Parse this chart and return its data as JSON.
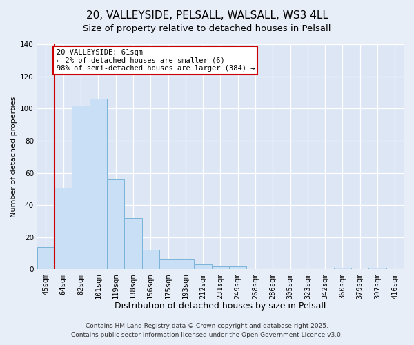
{
  "title": "20, VALLEYSIDE, PELSALL, WALSALL, WS3 4LL",
  "subtitle": "Size of property relative to detached houses in Pelsall",
  "xlabel": "Distribution of detached houses by size in Pelsall",
  "ylabel": "Number of detached properties",
  "categories": [
    "45sqm",
    "64sqm",
    "82sqm",
    "101sqm",
    "119sqm",
    "138sqm",
    "156sqm",
    "175sqm",
    "193sqm",
    "212sqm",
    "231sqm",
    "249sqm",
    "268sqm",
    "286sqm",
    "305sqm",
    "323sqm",
    "342sqm",
    "360sqm",
    "379sqm",
    "397sqm",
    "416sqm"
  ],
  "values": [
    14,
    51,
    102,
    106,
    56,
    32,
    12,
    6,
    6,
    3,
    2,
    2,
    0,
    0,
    0,
    0,
    0,
    1,
    0,
    1,
    0
  ],
  "bar_color": "#c8dff5",
  "bar_edge_color": "#7ab4d8",
  "marker_label": "20 VALLEYSIDE: 61sqm",
  "annotation_line1": "← 2% of detached houses are smaller (6)",
  "annotation_line2": "98% of semi-detached houses are larger (384) →",
  "annotation_box_color": "#ffffff",
  "annotation_box_edge": "#cc0000",
  "marker_line_color": "#cc0000",
  "ylim": [
    0,
    140
  ],
  "yticks": [
    0,
    20,
    40,
    60,
    80,
    100,
    120,
    140
  ],
  "footer1": "Contains HM Land Registry data © Crown copyright and database right 2025.",
  "footer2": "Contains public sector information licensed under the Open Government Licence v3.0.",
  "background_color": "#e8eef8",
  "plot_bg_color": "#dde6f5",
  "title_fontsize": 11,
  "subtitle_fontsize": 9.5,
  "xlabel_fontsize": 9,
  "ylabel_fontsize": 8,
  "tick_fontsize": 7.5,
  "footer_fontsize": 6.5
}
